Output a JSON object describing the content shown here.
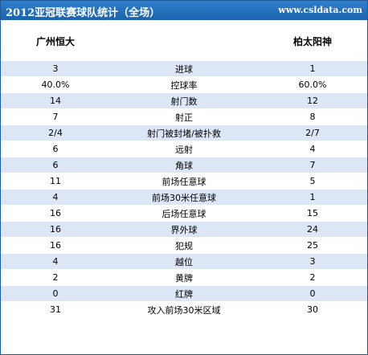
{
  "header": {
    "title": "2012亚冠联赛球队统计（全场）",
    "site": "www.csldata.com"
  },
  "teams": {
    "home": "广州恒大",
    "away": "柏太阳神"
  },
  "stats": [
    {
      "home": "3",
      "label": "进球",
      "away": "1"
    },
    {
      "home": "40.0%",
      "label": "控球率",
      "away": "60.0%"
    },
    {
      "home": "14",
      "label": "射门数",
      "away": "12"
    },
    {
      "home": "7",
      "label": "射正",
      "away": "8"
    },
    {
      "home": "2/4",
      "label": "射门被封堵/被扑救",
      "away": "2/7"
    },
    {
      "home": "6",
      "label": "远射",
      "away": "4"
    },
    {
      "home": "6",
      "label": "角球",
      "away": "7"
    },
    {
      "home": "11",
      "label": "前场任意球",
      "away": "5"
    },
    {
      "home": "4",
      "label": "前场30米任意球",
      "away": "1"
    },
    {
      "home": "16",
      "label": "后场任意球",
      "away": "15"
    },
    {
      "home": "16",
      "label": "界外球",
      "away": "24"
    },
    {
      "home": "16",
      "label": "犯规",
      "away": "25"
    },
    {
      "home": "4",
      "label": "越位",
      "away": "3"
    },
    {
      "home": "2",
      "label": "黄牌",
      "away": "2"
    },
    {
      "home": "0",
      "label": "红牌",
      "away": "0"
    },
    {
      "home": "31",
      "label": "攻入前场30米区域",
      "away": "30"
    }
  ]
}
